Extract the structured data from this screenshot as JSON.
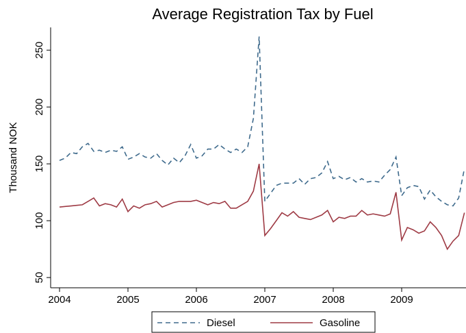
{
  "chart_data": {
    "type": "line",
    "title": "Average Registration Tax by Fuel",
    "y_label": "Thousand NOK",
    "x": [
      2004.0,
      2004.083,
      2004.167,
      2004.25,
      2004.333,
      2004.417,
      2004.5,
      2004.583,
      2004.667,
      2004.75,
      2004.833,
      2004.917,
      2005.0,
      2005.083,
      2005.167,
      2005.25,
      2005.333,
      2005.417,
      2005.5,
      2005.583,
      2005.667,
      2005.75,
      2005.833,
      2005.917,
      2006.0,
      2006.083,
      2006.167,
      2006.25,
      2006.333,
      2006.417,
      2006.5,
      2006.583,
      2006.667,
      2006.75,
      2006.833,
      2006.917,
      2007.0,
      2007.083,
      2007.167,
      2007.25,
      2007.333,
      2007.417,
      2007.5,
      2007.583,
      2007.667,
      2007.75,
      2007.833,
      2007.917,
      2008.0,
      2008.083,
      2008.167,
      2008.25,
      2008.333,
      2008.417,
      2008.5,
      2008.583,
      2008.667,
      2008.75,
      2008.833,
      2008.917,
      2009.0,
      2009.083,
      2009.167,
      2009.25,
      2009.333,
      2009.417,
      2009.5,
      2009.583,
      2009.667,
      2009.75,
      2009.833,
      2009.917
    ],
    "series": [
      {
        "name": "Diesel",
        "color": "#3e6a8c",
        "dash": "7 5",
        "values": [
          153,
          155,
          160,
          159,
          165,
          168,
          161,
          162,
          160,
          162,
          161,
          165,
          154,
          156,
          159,
          156,
          155,
          159,
          153,
          149,
          155,
          151,
          157,
          167,
          155,
          157,
          163,
          163,
          167,
          163,
          160,
          163,
          160,
          165,
          190,
          262,
          117,
          124,
          131,
          133,
          133,
          133,
          137,
          132,
          137,
          138,
          142,
          152,
          137,
          139,
          136,
          138,
          134,
          137,
          134,
          135,
          134,
          140,
          145,
          156,
          122,
          129,
          131,
          130,
          119,
          127,
          121,
          117,
          114,
          113,
          120,
          146
        ]
      },
      {
        "name": "Gasoline",
        "color": "#9e3a44",
        "values": [
          112,
          112.5,
          113,
          113.5,
          114,
          117,
          120,
          113,
          115,
          114,
          112,
          119,
          108,
          113,
          111,
          114,
          115,
          117,
          112,
          114,
          116,
          117,
          117,
          117,
          118,
          116,
          114,
          116,
          115,
          117,
          111,
          111,
          114,
          117,
          126,
          150,
          87,
          93,
          100,
          107,
          104,
          108,
          103,
          102,
          101,
          103,
          105,
          109,
          99,
          103,
          102,
          104,
          104,
          109,
          105,
          106,
          105,
          104,
          106,
          125,
          83,
          94,
          92,
          89,
          91,
          99,
          94,
          87,
          75,
          82,
          87,
          107
        ]
      }
    ],
    "xlim": [
      2003.87,
      2009.94
    ],
    "xticks": [
      2004,
      2005,
      2006,
      2007,
      2008,
      2009
    ],
    "ylim": [
      41,
      270
    ],
    "yticks": [
      50,
      100,
      150,
      200,
      250
    ],
    "legend": "bottom"
  }
}
